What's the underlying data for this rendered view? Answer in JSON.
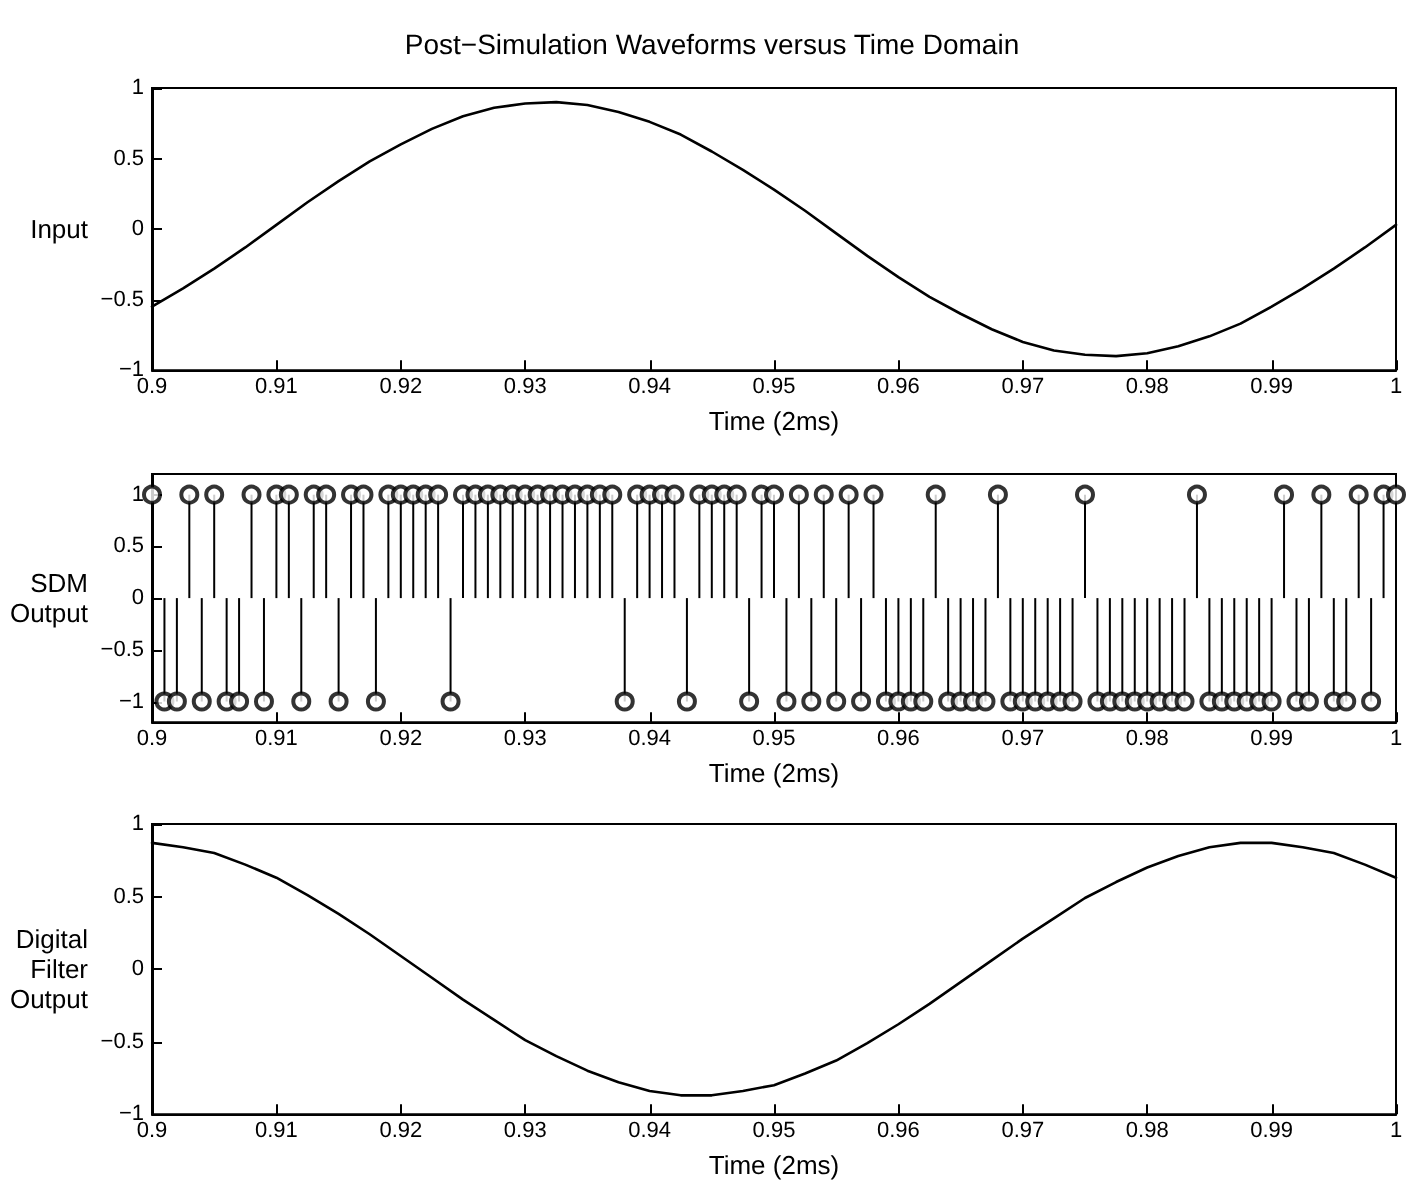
{
  "chart_data": [
    {
      "type": "line",
      "title": "Post−Simulation Waveforms versus Time Domain",
      "xlabel": "Time (2ms)",
      "ylabel": "Input",
      "grid": false,
      "marker": "none",
      "line_style": "solid",
      "xlim": [
        0.9,
        1
      ],
      "xticks": [
        0.9,
        0.91,
        0.92,
        0.93,
        0.94,
        0.95,
        0.96,
        0.97,
        0.98,
        0.99,
        1
      ],
      "ylim": [
        -1,
        1
      ],
      "yticks": [
        -1,
        -0.5,
        0,
        0.5,
        1
      ],
      "series": [
        {
          "color": "#000000",
          "x": [
            0.9,
            0.9025,
            0.905,
            0.9075,
            0.91,
            0.9125,
            0.915,
            0.9175,
            0.92,
            0.9225,
            0.925,
            0.9275,
            0.93,
            0.9325,
            0.935,
            0.9375,
            0.94,
            0.9425,
            0.945,
            0.9475,
            0.95,
            0.9525,
            0.955,
            0.9575,
            0.96,
            0.9625,
            0.965,
            0.9675,
            0.97,
            0.9725,
            0.975,
            0.9775,
            0.98,
            0.9825,
            0.985,
            0.9875,
            0.99,
            0.9925,
            0.995,
            0.9975,
            1
          ],
          "values": [
            -0.55,
            -0.42,
            -0.28,
            -0.13,
            0.03,
            0.19,
            0.34,
            0.48,
            0.6,
            0.71,
            0.8,
            0.86,
            0.89,
            0.9,
            0.88,
            0.83,
            0.76,
            0.67,
            0.55,
            0.42,
            0.28,
            0.13,
            -0.03,
            -0.19,
            -0.34,
            -0.48,
            -0.6,
            -0.71,
            -0.8,
            -0.86,
            -0.89,
            -0.9,
            -0.88,
            -0.83,
            -0.76,
            -0.67,
            -0.55,
            -0.42,
            -0.28,
            -0.13,
            0.03
          ]
        }
      ]
    },
    {
      "type": "lollipop",
      "xlabel": "Time (2ms)",
      "ylabel": "SDM\nOutput",
      "grid": false,
      "marker": "circle",
      "xlim": [
        0.9,
        1
      ],
      "xticks": [
        0.9,
        0.91,
        0.92,
        0.93,
        0.94,
        0.95,
        0.96,
        0.97,
        0.98,
        0.99,
        1
      ],
      "ylim": [
        -1.2,
        1.2
      ],
      "yticks": [
        -1,
        -0.5,
        0,
        0.5,
        1
      ],
      "series": [
        {
          "color": "#000000",
          "x": [
            0.9,
            0.901,
            0.902,
            0.903,
            0.904,
            0.905,
            0.906,
            0.907,
            0.908,
            0.909,
            0.91,
            0.911,
            0.912,
            0.913,
            0.914,
            0.915,
            0.916,
            0.917,
            0.918,
            0.919,
            0.92,
            0.921,
            0.922,
            0.923,
            0.924,
            0.925,
            0.926,
            0.927,
            0.928,
            0.929,
            0.93,
            0.931,
            0.932,
            0.933,
            0.934,
            0.935,
            0.936,
            0.937,
            0.938,
            0.939,
            0.94,
            0.941,
            0.942,
            0.943,
            0.944,
            0.945,
            0.946,
            0.947,
            0.948,
            0.949,
            0.95,
            0.951,
            0.952,
            0.953,
            0.954,
            0.955,
            0.956,
            0.957,
            0.958,
            0.959,
            0.96,
            0.961,
            0.962,
            0.963,
            0.964,
            0.965,
            0.966,
            0.967,
            0.968,
            0.969,
            0.97,
            0.971,
            0.972,
            0.973,
            0.974,
            0.975,
            0.976,
            0.977,
            0.978,
            0.979,
            0.98,
            0.981,
            0.982,
            0.983,
            0.984,
            0.985,
            0.986,
            0.987,
            0.988,
            0.989,
            0.99,
            0.991,
            0.992,
            0.993,
            0.994,
            0.995,
            0.996,
            0.997,
            0.998,
            0.999,
            1
          ],
          "values": [
            1,
            -1,
            -1,
            1,
            -1,
            1,
            -1,
            -1,
            1,
            -1,
            1,
            1,
            -1,
            1,
            1,
            -1,
            1,
            1,
            -1,
            1,
            1,
            1,
            1,
            1,
            -1,
            1,
            1,
            1,
            1,
            1,
            1,
            1,
            1,
            1,
            1,
            1,
            1,
            1,
            -1,
            1,
            1,
            1,
            1,
            -1,
            1,
            1,
            1,
            1,
            -1,
            1,
            1,
            -1,
            1,
            -1,
            1,
            -1,
            1,
            -1,
            1,
            -1,
            -1,
            -1,
            -1,
            1,
            -1,
            -1,
            -1,
            -1,
            1,
            -1,
            -1,
            -1,
            -1,
            -1,
            -1,
            1,
            -1,
            -1,
            -1,
            -1,
            -1,
            -1,
            -1,
            -1,
            1,
            -1,
            -1,
            -1,
            -1,
            -1,
            -1,
            1,
            -1,
            -1,
            1,
            -1,
            -1,
            1,
            -1,
            1,
            1
          ]
        }
      ]
    },
    {
      "type": "line",
      "xlabel": "Time (2ms)",
      "ylabel": "Digital\nFilter\nOutput",
      "grid": false,
      "marker": "none",
      "line_style": "solid",
      "xlim": [
        0.9,
        1
      ],
      "xticks": [
        0.9,
        0.91,
        0.92,
        0.93,
        0.94,
        0.95,
        0.96,
        0.97,
        0.98,
        0.99,
        1
      ],
      "ylim": [
        -1,
        1
      ],
      "yticks": [
        -1,
        -0.5,
        0,
        0.5,
        1
      ],
      "series": [
        {
          "color": "#000000",
          "x": [
            0.9,
            0.9025,
            0.905,
            0.9075,
            0.91,
            0.9125,
            0.915,
            0.9175,
            0.92,
            0.9225,
            0.925,
            0.9275,
            0.93,
            0.9325,
            0.935,
            0.9375,
            0.94,
            0.9425,
            0.945,
            0.9475,
            0.95,
            0.9525,
            0.955,
            0.9575,
            0.96,
            0.9625,
            0.965,
            0.9675,
            0.97,
            0.9725,
            0.975,
            0.9775,
            0.98,
            0.9825,
            0.985,
            0.9875,
            0.99,
            0.9925,
            0.995,
            0.9975,
            1
          ],
          "values": [
            0.87,
            0.84,
            0.8,
            0.72,
            0.63,
            0.51,
            0.38,
            0.24,
            0.09,
            -0.06,
            -0.21,
            -0.35,
            -0.49,
            -0.6,
            -0.7,
            -0.78,
            -0.84,
            -0.87,
            -0.87,
            -0.84,
            -0.8,
            -0.72,
            -0.63,
            -0.51,
            -0.38,
            -0.24,
            -0.09,
            0.06,
            0.21,
            0.35,
            0.49,
            0.6,
            0.7,
            0.78,
            0.84,
            0.87,
            0.87,
            0.84,
            0.8,
            0.72,
            0.63
          ]
        }
      ]
    }
  ]
}
